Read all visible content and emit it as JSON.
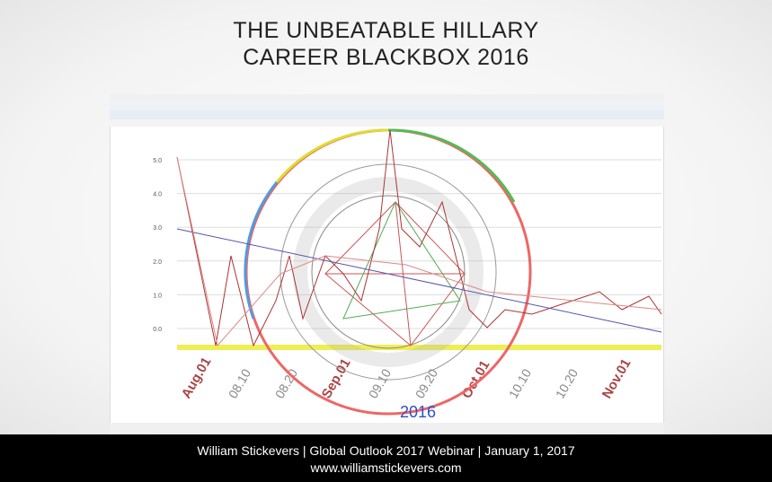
{
  "header": {
    "title_line1": "THE UNBEATABLE HILLARY",
    "title_line2": "CAREER BLACKBOX 2016"
  },
  "screenshot": {
    "y_axis_labels": [
      "5.0",
      "4.0",
      "3.0",
      "2.0",
      "1.0",
      "0.0"
    ],
    "x_axis_labels": [
      "Aug.01",
      "08.10",
      "08.20",
      "Sep.01",
      "09.10",
      "09.20",
      "Oct.01",
      "10.10",
      "10.20",
      "Nov.01"
    ],
    "year": "2016"
  },
  "footer": {
    "line1": "William Stickevers  |  Global Outlook 2017 Webinar  |  January 1, 2017",
    "line2": "www.williamstickevers.com"
  }
}
